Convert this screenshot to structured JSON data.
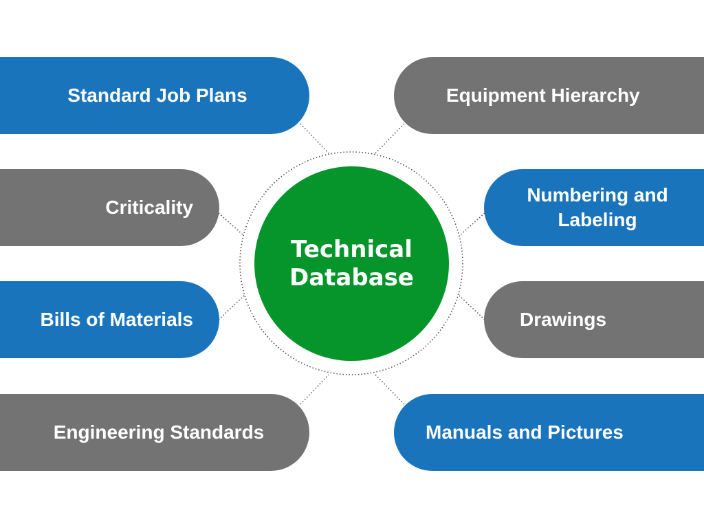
{
  "diagram": {
    "center": {
      "label": "Technical Database",
      "color": "#05952B"
    },
    "colors": {
      "blue": "#1A74BC",
      "gray": "#737373",
      "connector": "#4D4D4D"
    },
    "nodes_left": [
      {
        "label": "Standard Job Plans",
        "color": "blue"
      },
      {
        "label": "Criticality",
        "color": "gray"
      },
      {
        "label": "Bills of Materials",
        "color": "blue"
      },
      {
        "label": "Engineering Standards",
        "color": "gray"
      }
    ],
    "nodes_right": [
      {
        "label": "Equipment Hierarchy",
        "color": "gray"
      },
      {
        "label": "Numbering and Labeling",
        "color": "blue"
      },
      {
        "label": "Drawings",
        "color": "gray"
      },
      {
        "label": "Manuals and Pictures",
        "color": "blue"
      }
    ]
  }
}
